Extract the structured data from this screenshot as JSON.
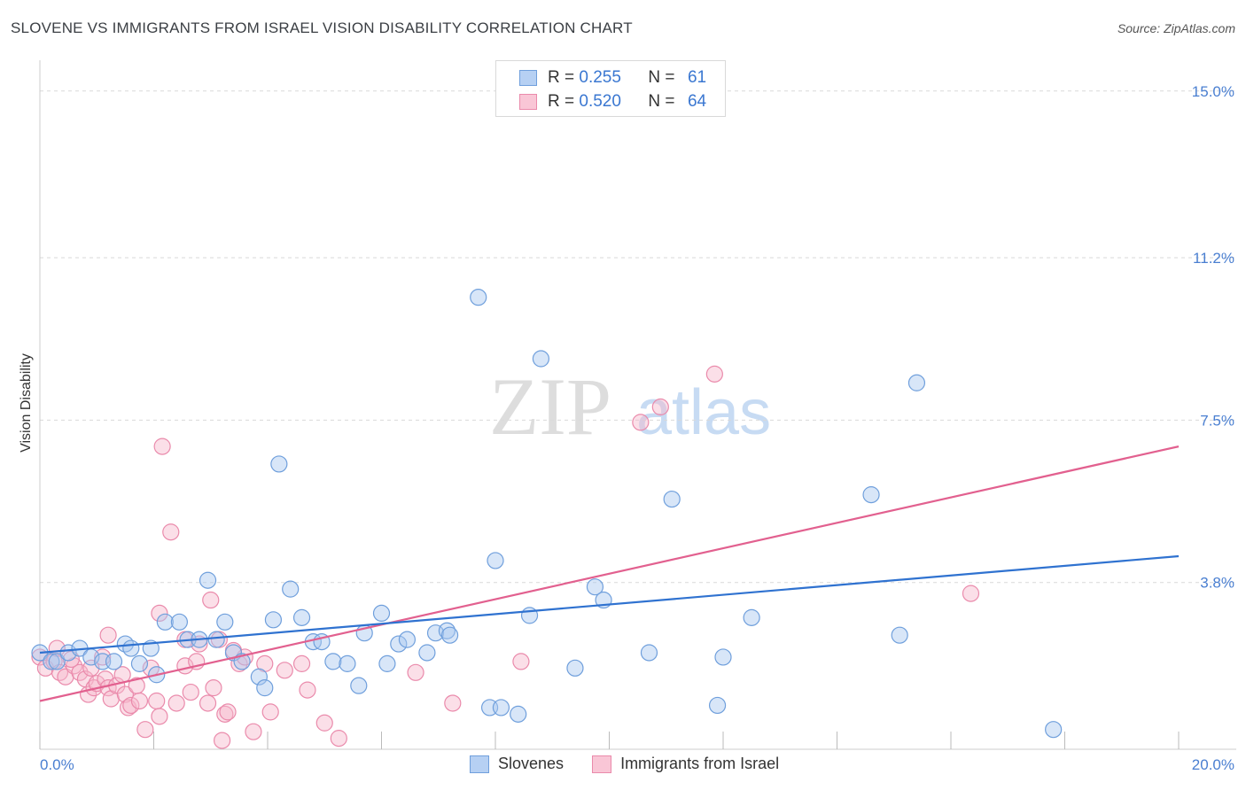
{
  "title": "SLOVENE VS IMMIGRANTS FROM ISRAEL VISION DISABILITY CORRELATION CHART",
  "source": "Source: ZipAtlas.com",
  "watermark": {
    "zip": "ZIP",
    "atlas": "atlas"
  },
  "legend": {
    "rows": [
      {
        "r_label": "R =",
        "r_value": "0.255",
        "n_label": "N =",
        "n_value": "61"
      },
      {
        "r_label": "R =",
        "r_value": "0.520",
        "n_label": "N =",
        "n_value": "64"
      }
    ]
  },
  "bottom_legend": {
    "slovenes": "Slovenes",
    "israel": "Immigrants from Israel"
  },
  "colors": {
    "slovenes_fill": "#a9c8f0",
    "slovenes_stroke": "#6f9fdc",
    "slovenes_line": "#2f72d0",
    "israel_fill": "#f7b9cd",
    "israel_stroke": "#ea8aab",
    "israel_line": "#e2608f",
    "grid": "#d9d9d9",
    "tick": "#4a7fd1"
  },
  "chart_data": {
    "type": "scatter",
    "title": "SLOVENE VS IMMIGRANTS FROM ISRAEL VISION DISABILITY CORRELATION CHART",
    "xlabel": "",
    "ylabel": "Vision Disability",
    "xlim": [
      0,
      20
    ],
    "ylim": [
      0,
      15.5
    ],
    "x_tick_labels": [
      {
        "value": 0,
        "label": "0.0%"
      },
      {
        "value": 20,
        "label": "20.0%"
      }
    ],
    "y_tick_labels": [
      {
        "value": 3.8,
        "label": "3.8%"
      },
      {
        "value": 7.5,
        "label": "7.5%"
      },
      {
        "value": 11.2,
        "label": "11.2%"
      },
      {
        "value": 15.0,
        "label": "15.0%"
      }
    ],
    "series": [
      {
        "name": "Slovenes",
        "R": 0.255,
        "N": 61,
        "trend": {
          "x": [
            0,
            20
          ],
          "y": [
            2.2,
            4.4
          ]
        },
        "points": [
          [
            0.0,
            2.2
          ],
          [
            0.2,
            2.0
          ],
          [
            0.3,
            2.0
          ],
          [
            0.5,
            2.2
          ],
          [
            0.7,
            2.3
          ],
          [
            0.9,
            2.1
          ],
          [
            1.1,
            2.0
          ],
          [
            1.3,
            2.0
          ],
          [
            1.5,
            2.4
          ],
          [
            1.6,
            2.3
          ],
          [
            1.75,
            1.95
          ],
          [
            1.95,
            2.3
          ],
          [
            2.05,
            1.7
          ],
          [
            2.2,
            2.9
          ],
          [
            2.45,
            2.9
          ],
          [
            2.6,
            2.5
          ],
          [
            2.8,
            2.5
          ],
          [
            2.95,
            3.85
          ],
          [
            3.1,
            2.5
          ],
          [
            3.25,
            2.9
          ],
          [
            3.4,
            2.2
          ],
          [
            3.55,
            2.0
          ],
          [
            3.85,
            1.65
          ],
          [
            3.95,
            1.4
          ],
          [
            4.1,
            2.95
          ],
          [
            4.2,
            6.5
          ],
          [
            4.4,
            3.65
          ],
          [
            4.6,
            3.0
          ],
          [
            4.8,
            2.45
          ],
          [
            4.95,
            2.45
          ],
          [
            5.15,
            2.0
          ],
          [
            5.4,
            1.95
          ],
          [
            5.6,
            1.45
          ],
          [
            5.7,
            2.65
          ],
          [
            6.0,
            3.1
          ],
          [
            6.1,
            1.95
          ],
          [
            6.3,
            2.4
          ],
          [
            6.45,
            2.5
          ],
          [
            6.8,
            2.2
          ],
          [
            6.95,
            2.65
          ],
          [
            7.15,
            2.7
          ],
          [
            7.2,
            2.6
          ],
          [
            7.7,
            10.3
          ],
          [
            7.9,
            0.95
          ],
          [
            8.0,
            4.3
          ],
          [
            8.1,
            0.95
          ],
          [
            8.4,
            0.8
          ],
          [
            8.6,
            3.05
          ],
          [
            8.8,
            8.9
          ],
          [
            9.4,
            1.85
          ],
          [
            9.75,
            3.7
          ],
          [
            9.9,
            3.4
          ],
          [
            10.7,
            2.2
          ],
          [
            11.1,
            5.7
          ],
          [
            11.9,
            1.0
          ],
          [
            12.0,
            2.1
          ],
          [
            12.5,
            3.0
          ],
          [
            14.6,
            5.8
          ],
          [
            15.1,
            2.6
          ],
          [
            15.4,
            8.35
          ],
          [
            17.8,
            0.45
          ]
        ]
      },
      {
        "name": "Immigrants from Israel",
        "R": 0.52,
        "N": 64,
        "trend": {
          "x": [
            0,
            20
          ],
          "y": [
            1.1,
            6.9
          ]
        },
        "points": [
          [
            0.0,
            2.1
          ],
          [
            0.1,
            1.85
          ],
          [
            0.25,
            2.0
          ],
          [
            0.35,
            1.75
          ],
          [
            0.45,
            1.65
          ],
          [
            0.6,
            1.9
          ],
          [
            0.7,
            1.75
          ],
          [
            0.8,
            1.6
          ],
          [
            0.85,
            1.25
          ],
          [
            0.9,
            1.85
          ],
          [
            0.95,
            1.4
          ],
          [
            1.0,
            1.5
          ],
          [
            1.1,
            2.1
          ],
          [
            1.15,
            1.6
          ],
          [
            1.2,
            1.4
          ],
          [
            1.25,
            1.15
          ],
          [
            1.35,
            1.45
          ],
          [
            1.45,
            1.7
          ],
          [
            1.5,
            1.25
          ],
          [
            1.55,
            0.95
          ],
          [
            1.6,
            1.0
          ],
          [
            1.7,
            1.45
          ],
          [
            1.75,
            1.1
          ],
          [
            1.85,
            0.45
          ],
          [
            1.95,
            1.85
          ],
          [
            2.05,
            1.1
          ],
          [
            2.1,
            0.75
          ],
          [
            2.15,
            6.9
          ],
          [
            2.3,
            4.95
          ],
          [
            2.4,
            1.05
          ],
          [
            2.55,
            1.9
          ],
          [
            2.65,
            1.3
          ],
          [
            2.75,
            2.0
          ],
          [
            2.8,
            2.4
          ],
          [
            2.95,
            1.05
          ],
          [
            3.05,
            1.4
          ],
          [
            3.15,
            2.5
          ],
          [
            3.2,
            0.2
          ],
          [
            3.25,
            0.8
          ],
          [
            3.3,
            0.85
          ],
          [
            3.5,
            1.95
          ],
          [
            3.6,
            2.1
          ],
          [
            3.75,
            0.4
          ],
          [
            3.95,
            1.95
          ],
          [
            4.05,
            0.85
          ],
          [
            4.3,
            1.8
          ],
          [
            4.6,
            1.95
          ],
          [
            4.7,
            1.35
          ],
          [
            5.0,
            0.6
          ],
          [
            5.25,
            0.25
          ],
          [
            6.6,
            1.75
          ],
          [
            7.25,
            1.05
          ],
          [
            8.45,
            2.0
          ],
          [
            10.55,
            7.45
          ],
          [
            10.9,
            7.8
          ],
          [
            11.85,
            8.55
          ],
          [
            16.35,
            3.55
          ],
          [
            3.0,
            3.4
          ],
          [
            2.1,
            3.1
          ],
          [
            1.2,
            2.6
          ],
          [
            0.55,
            2.05
          ],
          [
            0.3,
            2.3
          ],
          [
            2.55,
            2.5
          ],
          [
            3.4,
            2.25
          ]
        ]
      }
    ]
  }
}
